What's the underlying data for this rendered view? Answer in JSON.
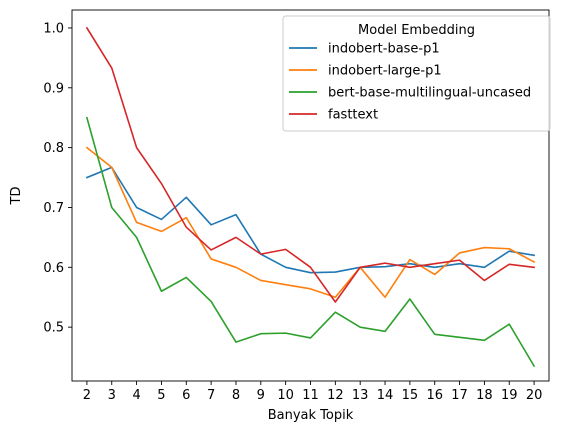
{
  "chart_data": {
    "type": "line",
    "title": "",
    "xlabel": "Banyak Topik",
    "ylabel": "TD",
    "x": [
      2,
      3,
      4,
      5,
      6,
      7,
      8,
      9,
      10,
      11,
      12,
      13,
      14,
      15,
      16,
      17,
      18,
      19,
      20
    ],
    "xlim": [
      1.4,
      20.6
    ],
    "ylim": [
      0.41,
      1.03
    ],
    "yticks": [
      0.5,
      0.6,
      0.7,
      0.8,
      0.9,
      1.0
    ],
    "ytick_labels": [
      "0.5",
      "0.6",
      "0.7",
      "0.8",
      "0.9",
      "1.0"
    ],
    "grid": false,
    "legend": {
      "title": "Model Embedding",
      "placement": "top-right"
    },
    "series": [
      {
        "name": "indobert-base-p1",
        "color": "#1f77b4",
        "values": [
          0.75,
          0.767,
          0.7,
          0.68,
          0.717,
          0.671,
          0.688,
          0.622,
          0.6,
          0.591,
          0.592,
          0.6,
          0.601,
          0.606,
          0.6,
          0.606,
          0.6,
          0.627,
          0.62
        ]
      },
      {
        "name": "indobert-large-p1",
        "color": "#ff7f0e",
        "values": [
          0.8,
          0.767,
          0.675,
          0.66,
          0.683,
          0.614,
          0.6,
          0.578,
          0.571,
          0.564,
          0.55,
          0.6,
          0.55,
          0.613,
          0.588,
          0.624,
          0.633,
          0.631,
          0.609
        ]
      },
      {
        "name": "bert-base-multilingual-uncased",
        "color": "#2ca02c",
        "values": [
          0.85,
          0.7,
          0.65,
          0.56,
          0.583,
          0.543,
          0.475,
          0.489,
          0.49,
          0.482,
          0.525,
          0.5,
          0.493,
          0.547,
          0.488,
          0.483,
          0.478,
          0.505,
          0.435
        ]
      },
      {
        "name": "fasttext",
        "color": "#d62728",
        "values": [
          1.0,
          0.933,
          0.8,
          0.74,
          0.667,
          0.629,
          0.65,
          0.622,
          0.63,
          0.6,
          0.542,
          0.6,
          0.607,
          0.6,
          0.606,
          0.612,
          0.578,
          0.605,
          0.6
        ]
      }
    ]
  }
}
